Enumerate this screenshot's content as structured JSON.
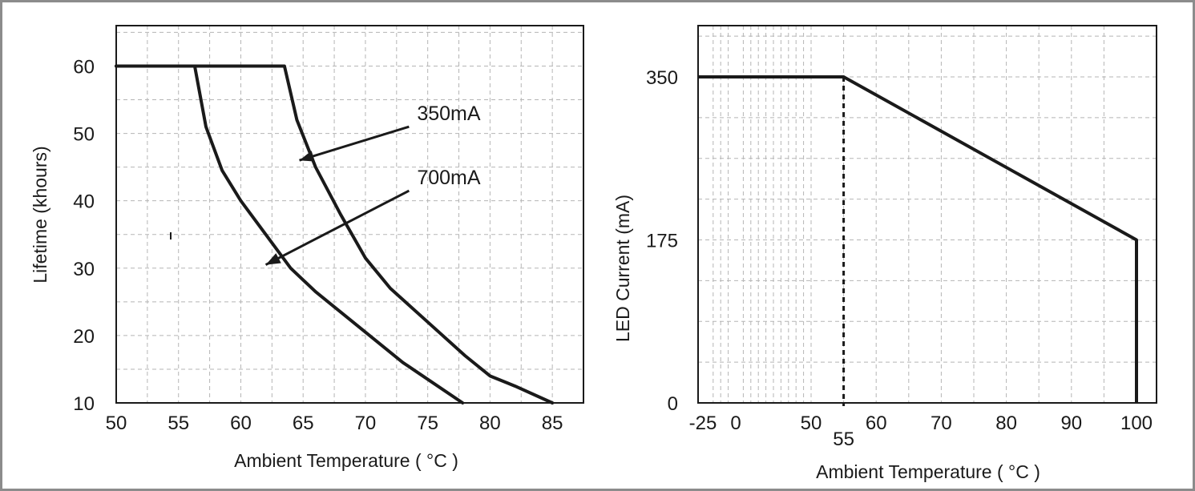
{
  "chart_data": [
    {
      "type": "line",
      "title": "",
      "xlabel": "Ambient Temperature ( °C )",
      "ylabel": "Lifetime (khours)",
      "xlim": [
        50,
        87.5
      ],
      "ylim": [
        10,
        66
      ],
      "x_ticks": [
        "50",
        "55",
        "60",
        "65",
        "70",
        "75",
        "80",
        "85"
      ],
      "y_ticks": [
        "10",
        "20",
        "30",
        "40",
        "50",
        "60"
      ],
      "grid": true,
      "series": [
        {
          "name": "350mA",
          "x": [
            50,
            63.5,
            64.5,
            66,
            68,
            70,
            72,
            75,
            78,
            80,
            82,
            85
          ],
          "y": [
            60,
            60,
            52,
            45,
            38,
            31.5,
            27,
            22,
            17,
            14,
            12.5,
            10
          ]
        },
        {
          "name": "700mA",
          "x": [
            50,
            56.3,
            57.2,
            58.5,
            60,
            62,
            64,
            66,
            68,
            70,
            73,
            75,
            77.8
          ],
          "y": [
            60,
            60,
            51,
            44.5,
            40,
            35,
            30,
            26.5,
            23.5,
            20.5,
            16,
            13.5,
            10
          ]
        }
      ],
      "annotations": [
        {
          "text": "350mA",
          "x": 73.5,
          "y": 51,
          "arrow_to": [
            64.7,
            46
          ]
        },
        {
          "text": "700mA",
          "x": 73.5,
          "y": 41.5,
          "arrow_to": [
            62,
            30.5
          ]
        }
      ]
    },
    {
      "type": "line",
      "title": "",
      "xlabel": "Ambient Temperature ( °C )",
      "ylabel": "LED Current (mA)",
      "ylim": [
        0,
        405
      ],
      "x_ticks": [
        "-25",
        "0",
        "50",
        "55",
        "60",
        "70",
        "80",
        "90",
        "100"
      ],
      "y_ticks": [
        "0",
        "175",
        "350"
      ],
      "grid": true,
      "series": [
        {
          "name": "",
          "x": [
            -25,
            55,
            100,
            100
          ],
          "y": [
            350,
            350,
            175,
            0
          ]
        }
      ],
      "reference_line": {
        "x": 55,
        "style": "dashed"
      }
    }
  ]
}
